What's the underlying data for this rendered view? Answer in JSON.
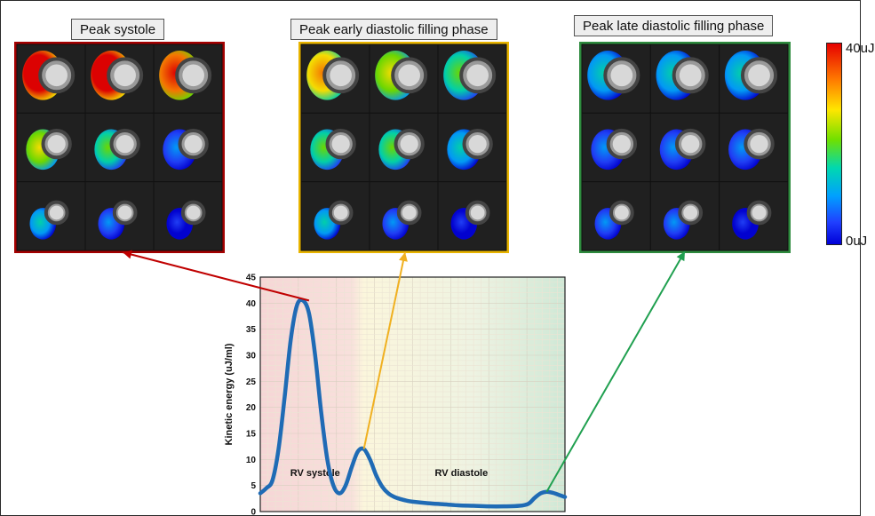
{
  "panels": [
    {
      "label": "Peak systole",
      "border_color": "#a40000"
    },
    {
      "label": "Peak early diastolic filling phase",
      "border_color": "#e8b400"
    },
    {
      "label": "Peak late diastolic filling phase",
      "border_color": "#2e8b3e"
    }
  ],
  "colorbar": {
    "max_label": "40uJ",
    "min_label": "0uJ",
    "colors": [
      "#e60000",
      "#ff7a00",
      "#ffe600",
      "#6fe000",
      "#00d8b0",
      "#00a0ff",
      "#0000d8"
    ]
  },
  "arrow_colors": [
    "#c00000",
    "#f0b020",
    "#20a050"
  ],
  "chart_data": {
    "type": "line",
    "ylabel": "Kinetic energy (uJ/ml)",
    "ylim": [
      0,
      45
    ],
    "yticks": [
      0,
      5,
      10,
      15,
      20,
      25,
      30,
      35,
      40,
      45
    ],
    "grid": true,
    "regions": [
      {
        "label": "RV systole",
        "color": "#f6d4d4"
      },
      {
        "label": "RV diastole",
        "color": "#e8f2dc"
      }
    ],
    "series": [
      {
        "color": "#1f6bb5",
        "x": [
          0,
          2,
          4,
          6,
          8,
          10,
          12,
          14,
          16,
          18,
          20,
          22,
          24,
          26,
          28,
          30,
          32,
          34,
          36,
          38,
          40,
          42,
          44,
          46,
          48,
          50,
          55,
          60,
          65,
          70,
          75,
          80,
          85,
          88,
          90,
          92,
          94,
          96,
          98,
          100
        ],
        "y": [
          3.5,
          4.5,
          6,
          12,
          22,
          33,
          39.5,
          40.5,
          38,
          30,
          19,
          10,
          5,
          3.5,
          5,
          8.5,
          11.5,
          12,
          10,
          7,
          4.8,
          3.5,
          2.8,
          2.4,
          2.1,
          1.9,
          1.6,
          1.4,
          1.2,
          1.1,
          1.0,
          1.0,
          1.1,
          1.5,
          2.6,
          3.5,
          3.8,
          3.6,
          3.2,
          2.8
        ]
      }
    ]
  }
}
